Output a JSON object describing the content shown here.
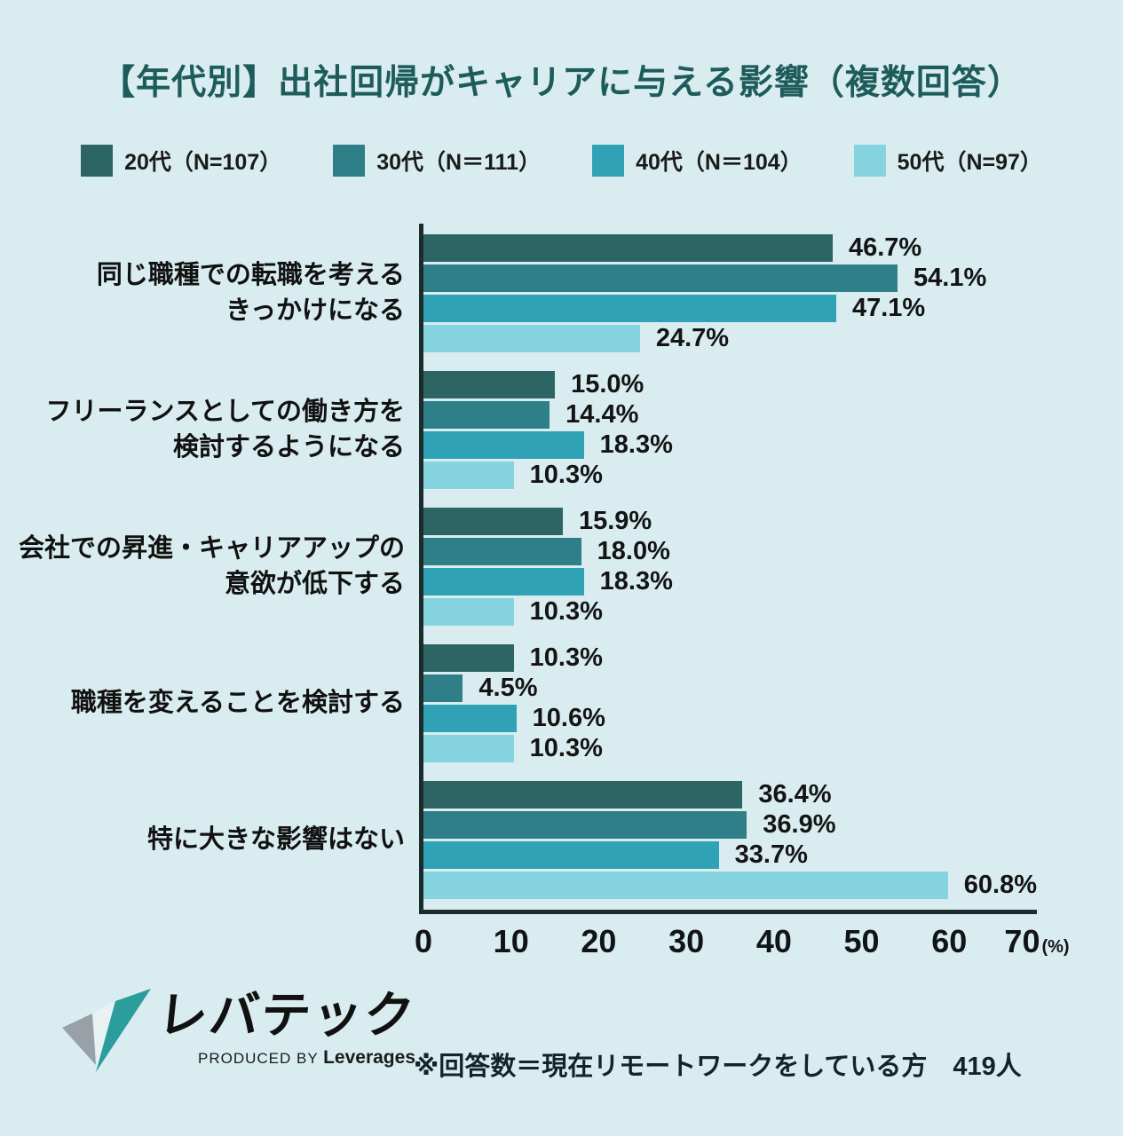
{
  "title": "【年代別】出社回帰がキャリアに与える影響（複数回答）",
  "colors": {
    "background": "#d9edf0",
    "title": "#1e5c5c",
    "axis": "#1c2b2b"
  },
  "chart_data": {
    "type": "bar",
    "orientation": "horizontal",
    "title": "【年代別】出社回帰がキャリアに与える影響（複数回答）",
    "categories": [
      "同じ職種での転職を考える\nきっかけになる",
      "フリーランスとしての働き方を\n検討するようになる",
      "会社での昇進・キャリアアップの\n意欲が低下する",
      "職種を変えることを検討する",
      "特に大きな影響はない"
    ],
    "series": [
      {
        "name": "20代（N=107）",
        "color": "#2d6565",
        "values": [
          46.7,
          15.0,
          15.9,
          10.3,
          36.4
        ]
      },
      {
        "name": "30代（N＝111）",
        "color": "#2e7f88",
        "values": [
          54.1,
          14.4,
          18.0,
          4.5,
          36.9
        ]
      },
      {
        "name": "40代（N＝104）",
        "color": "#2fa3b5",
        "values": [
          47.1,
          18.3,
          18.3,
          10.6,
          33.7
        ]
      },
      {
        "name": "50代（N=97）",
        "color": "#86d4df",
        "values": [
          24.7,
          10.3,
          10.3,
          10.3,
          60.8
        ]
      }
    ],
    "value_suffix": "%",
    "xlim": [
      0,
      70
    ],
    "x_ticks": [
      0,
      10,
      20,
      30,
      40,
      50,
      60,
      70
    ],
    "x_unit": "(%)",
    "legend_position": "top",
    "grid": false
  },
  "footer": {
    "logo_text": "レバテック",
    "logo_sub_prefix": "PRODUCED BY ",
    "logo_sub_brand": "Leverages",
    "note": "※回答数＝現在リモートワークをしている方　419人"
  }
}
